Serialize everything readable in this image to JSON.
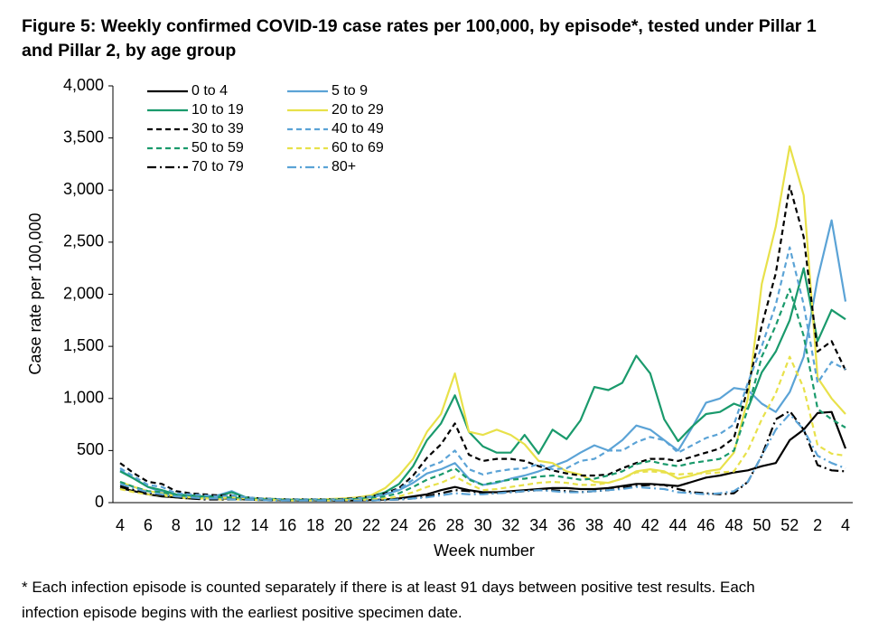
{
  "chart_data": {
    "type": "line",
    "title": "Figure 5: Weekly confirmed COVID-19 case rates per 100,000, by episode*, tested under Pillar 1 and Pillar 2, by age group",
    "x_label": "Week number",
    "y_label": "Case rate per 100,000",
    "footnote": "* Each infection episode is counted separately if there is at least 91 days between positive test results. Each infection episode begins with the earliest positive specimen date.",
    "categories": [
      "4",
      null,
      "6",
      null,
      "8",
      null,
      "10",
      null,
      "12",
      null,
      "14",
      null,
      "16",
      null,
      "18",
      null,
      "20",
      null,
      "22",
      null,
      "24",
      null,
      "26",
      null,
      "28",
      null,
      "30",
      null,
      "32",
      null,
      "34",
      null,
      "36",
      null,
      "38",
      null,
      "40",
      null,
      "42",
      null,
      "44",
      null,
      "46",
      null,
      "48",
      null,
      "50",
      null,
      "52",
      null,
      "2",
      null,
      "4"
    ],
    "ylim": [
      0,
      4000
    ],
    "yticks": [
      0,
      500,
      {
        "value": 1000,
        "label": "1,000"
      },
      {
        "value": 1500,
        "label": "1,500"
      },
      {
        "value": 2000,
        "label": "2,000"
      },
      {
        "value": 2500,
        "label": "2,500"
      },
      {
        "value": 3000,
        "label": "3,000"
      },
      {
        "value": 3500,
        "label": "3,500"
      },
      {
        "value": 4000,
        "label": "4,000"
      }
    ],
    "grid": false,
    "legend": "top-left",
    "series": [
      {
        "name": "0 to 4",
        "color": "#000000",
        "style": "solid",
        "values": [
          140,
          110,
          80,
          60,
          50,
          40,
          40,
          40,
          40,
          30,
          25,
          25,
          20,
          20,
          20,
          20,
          20,
          20,
          25,
          30,
          40,
          60,
          80,
          120,
          150,
          120,
          100,
          100,
          110,
          120,
          130,
          140,
          140,
          130,
          130,
          140,
          160,
          180,
          180,
          170,
          160,
          200,
          240,
          260,
          290,
          310,
          350,
          380,
          600,
          700,
          860,
          870,
          520
        ]
      },
      {
        "name": "5 to 9",
        "color": "#5ba3d6",
        "style": "solid",
        "values": [
          310,
          230,
          150,
          100,
          70,
          60,
          60,
          70,
          110,
          50,
          30,
          30,
          25,
          25,
          25,
          25,
          30,
          40,
          50,
          80,
          120,
          190,
          280,
          320,
          380,
          230,
          170,
          190,
          230,
          260,
          300,
          350,
          400,
          480,
          550,
          500,
          600,
          740,
          700,
          600,
          500,
          720,
          960,
          1000,
          1100,
          1080,
          950,
          870,
          1060,
          1400,
          2150,
          2710,
          1930
        ]
      },
      {
        "name": "10 to 19",
        "color": "#1a9a6c",
        "style": "solid",
        "values": [
          300,
          230,
          150,
          120,
          80,
          70,
          60,
          60,
          100,
          50,
          40,
          35,
          30,
          30,
          30,
          30,
          35,
          40,
          60,
          100,
          180,
          350,
          600,
          760,
          1030,
          680,
          540,
          480,
          480,
          650,
          470,
          700,
          610,
          790,
          1110,
          1080,
          1150,
          1410,
          1240,
          800,
          590,
          730,
          850,
          870,
          950,
          900,
          1250,
          1450,
          1750,
          2250,
          1550,
          1850,
          1760
        ]
      },
      {
        "name": "20 to 29",
        "color": "#e8e14a",
        "style": "solid",
        "values": [
          200,
          150,
          110,
          90,
          60,
          50,
          40,
          40,
          50,
          40,
          40,
          35,
          30,
          30,
          30,
          35,
          40,
          50,
          70,
          140,
          260,
          420,
          680,
          850,
          1240,
          680,
          650,
          700,
          650,
          560,
          400,
          380,
          300,
          270,
          200,
          190,
          230,
          300,
          320,
          300,
          230,
          260,
          300,
          320,
          480,
          1000,
          2100,
          2650,
          3420,
          2950,
          1200,
          1000,
          850
        ]
      },
      {
        "name": "30 to 39",
        "color": "#000000",
        "style": "dashed",
        "values": [
          380,
          280,
          200,
          180,
          110,
          90,
          80,
          70,
          70,
          50,
          40,
          35,
          30,
          30,
          30,
          30,
          35,
          45,
          60,
          90,
          140,
          260,
          430,
          560,
          760,
          460,
          400,
          420,
          420,
          400,
          350,
          310,
          280,
          260,
          260,
          270,
          330,
          380,
          420,
          420,
          400,
          440,
          480,
          520,
          620,
          1100,
          1700,
          2200,
          3040,
          2550,
          1450,
          1550,
          1270
        ]
      },
      {
        "name": "40 to 49",
        "color": "#5ba3d6",
        "style": "dashed",
        "values": [
          330,
          250,
          170,
          150,
          90,
          80,
          70,
          60,
          70,
          50,
          40,
          35,
          30,
          30,
          30,
          30,
          30,
          40,
          60,
          80,
          130,
          220,
          340,
          390,
          500,
          320,
          270,
          300,
          320,
          330,
          370,
          320,
          330,
          400,
          420,
          500,
          500,
          580,
          630,
          600,
          480,
          550,
          620,
          660,
          750,
          1150,
          1500,
          1900,
          2450,
          1900,
          1150,
          1350,
          1280
        ]
      },
      {
        "name": "50 to 59",
        "color": "#1a9a6c",
        "style": "dashed",
        "values": [
          200,
          150,
          110,
          100,
          70,
          60,
          50,
          50,
          50,
          40,
          30,
          30,
          25,
          25,
          25,
          25,
          30,
          35,
          40,
          60,
          90,
          150,
          220,
          270,
          330,
          220,
          170,
          200,
          220,
          230,
          250,
          260,
          240,
          220,
          230,
          260,
          300,
          370,
          400,
          370,
          350,
          380,
          400,
          420,
          500,
          900,
          1400,
          1700,
          2050,
          1600,
          900,
          800,
          720
        ]
      },
      {
        "name": "60 to 69",
        "color": "#e8e14a",
        "style": "dashed",
        "values": [
          130,
          100,
          80,
          70,
          50,
          40,
          40,
          30,
          30,
          30,
          25,
          25,
          20,
          20,
          20,
          20,
          25,
          25,
          30,
          40,
          60,
          100,
          150,
          190,
          250,
          180,
          120,
          130,
          150,
          170,
          190,
          200,
          190,
          170,
          170,
          190,
          230,
          290,
          300,
          290,
          270,
          280,
          280,
          290,
          300,
          500,
          800,
          1050,
          1400,
          1100,
          550,
          470,
          450
        ]
      },
      {
        "name": "70 to 79",
        "color": "#000000",
        "style": "dashdot",
        "values": [
          160,
          120,
          90,
          70,
          50,
          40,
          30,
          30,
          30,
          30,
          25,
          20,
          20,
          20,
          20,
          20,
          20,
          20,
          20,
          25,
          30,
          40,
          60,
          90,
          120,
          110,
          90,
          90,
          100,
          110,
          120,
          120,
          110,
          100,
          110,
          120,
          140,
          160,
          170,
          170,
          130,
          100,
          90,
          80,
          90,
          200,
          450,
          800,
          880,
          700,
          360,
          310,
          300
        ]
      },
      {
        "name": "80+",
        "color": "#5ba3d6",
        "style": "dashdot",
        "values": [
          180,
          140,
          100,
          80,
          60,
          50,
          40,
          40,
          30,
          30,
          25,
          20,
          20,
          20,
          20,
          20,
          20,
          20,
          20,
          25,
          30,
          40,
          50,
          70,
          90,
          80,
          80,
          90,
          100,
          110,
          120,
          110,
          100,
          100,
          110,
          120,
          130,
          150,
          140,
          130,
          100,
          90,
          80,
          90,
          110,
          200,
          450,
          700,
          850,
          700,
          450,
          380,
          330
        ]
      }
    ]
  }
}
